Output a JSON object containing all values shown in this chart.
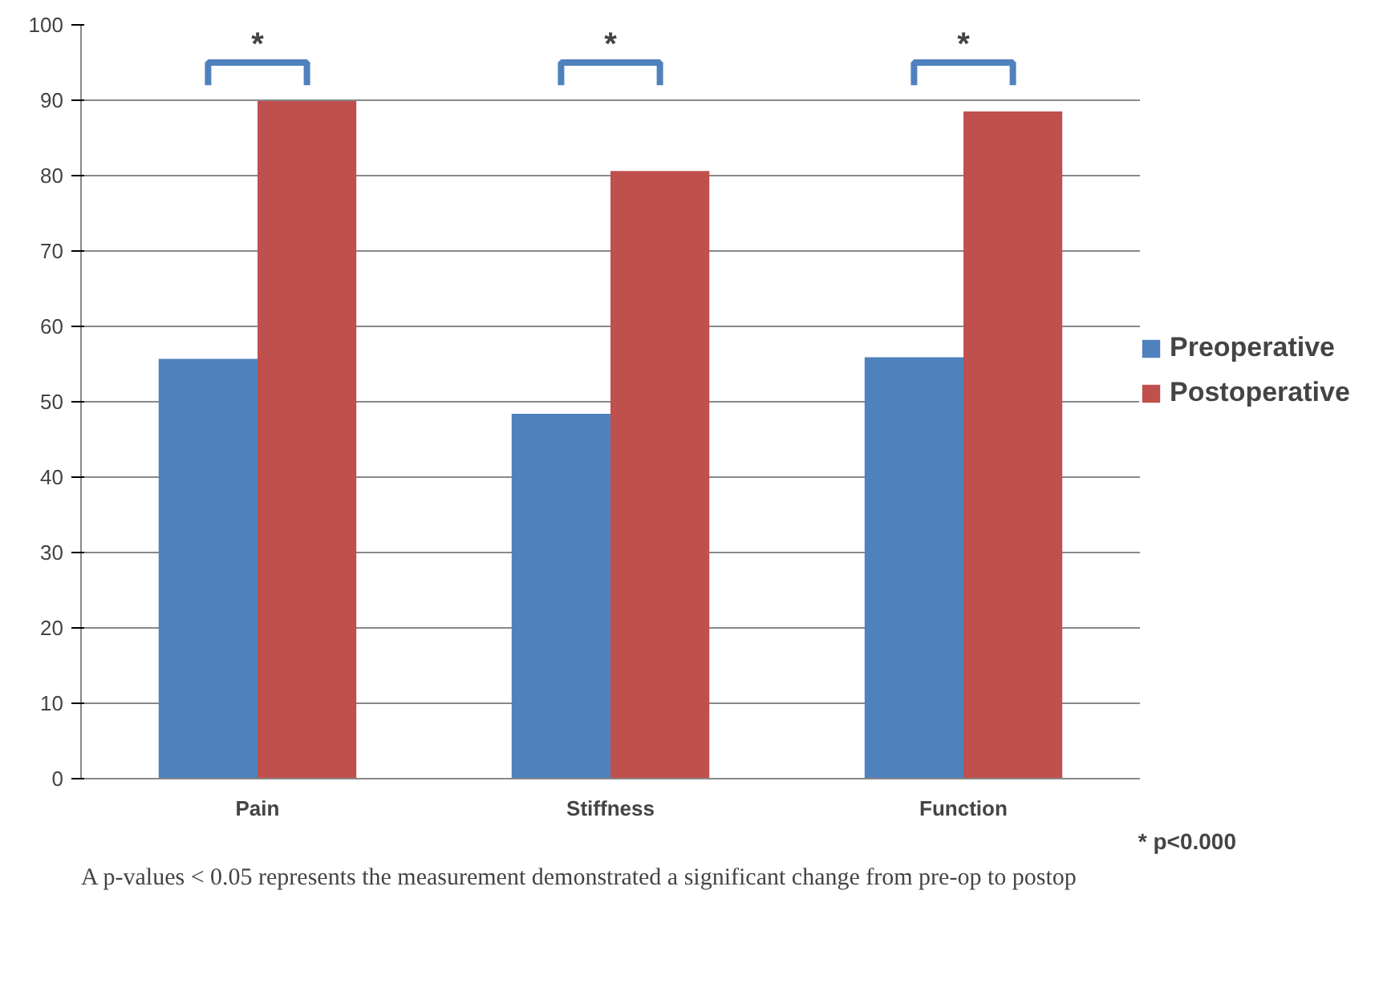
{
  "chart_data": {
    "type": "bar",
    "categories": [
      "Pain",
      "Stiffness",
      "Function"
    ],
    "series": [
      {
        "name": "Preoperative",
        "color": "#4f81bd",
        "values": [
          55.7,
          48.4,
          55.9
        ]
      },
      {
        "name": "Postoperative",
        "color": "#c0504d",
        "values": [
          89.9,
          80.6,
          88.5
        ]
      }
    ],
    "ylim": [
      0,
      100
    ],
    "yticks": [
      0,
      10,
      20,
      30,
      40,
      50,
      60,
      70,
      80,
      90,
      100
    ],
    "grid": "y",
    "legend": "right",
    "annotations": [
      "*",
      "*",
      "*",
      "* p<0.000",
      "A p-values < 0.05 represents the measurement demonstrated a significant change from pre-op to postop"
    ]
  }
}
